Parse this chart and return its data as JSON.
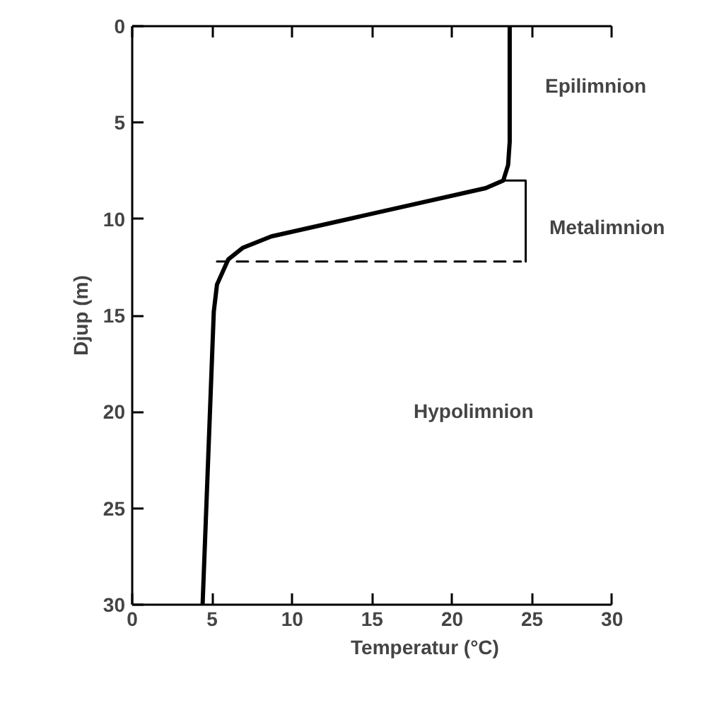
{
  "chart_data": {
    "type": "line",
    "xlabel": "Temperatur (°C)",
    "ylabel": "Djup (m)",
    "xlim": [
      0,
      30
    ],
    "xticks": [
      0,
      5,
      10,
      15,
      20,
      25,
      30
    ],
    "ylim": [
      30,
      0
    ],
    "yticks": [
      0,
      5,
      10,
      15,
      20,
      25,
      30
    ],
    "grid": false,
    "marker": "none",
    "series": [
      {
        "color": "#000000",
        "line_style": "solid",
        "x": [
          23.6,
          23.6,
          23.5,
          23.2,
          22.1,
          8.7,
          6.9,
          6.0,
          5.3,
          5.1,
          4.4
        ],
        "values": [
          0,
          6.0,
          7.2,
          8.0,
          8.4,
          10.9,
          11.5,
          12.1,
          13.4,
          14.8,
          30
        ]
      },
      {
        "color": "#000000",
        "line_style": "dashed",
        "x": [
          5.3,
          24.3
        ],
        "values": [
          12.2,
          12.2
        ]
      },
      {
        "color": "#000000",
        "line_style": "solid",
        "x": [
          23.2,
          24.6,
          24.6
        ],
        "values": [
          8.0,
          8.0,
          12.2
        ]
      }
    ],
    "annotations": [
      "Epilimnion",
      "Metalimnion",
      "Hypolimnion"
    ]
  }
}
